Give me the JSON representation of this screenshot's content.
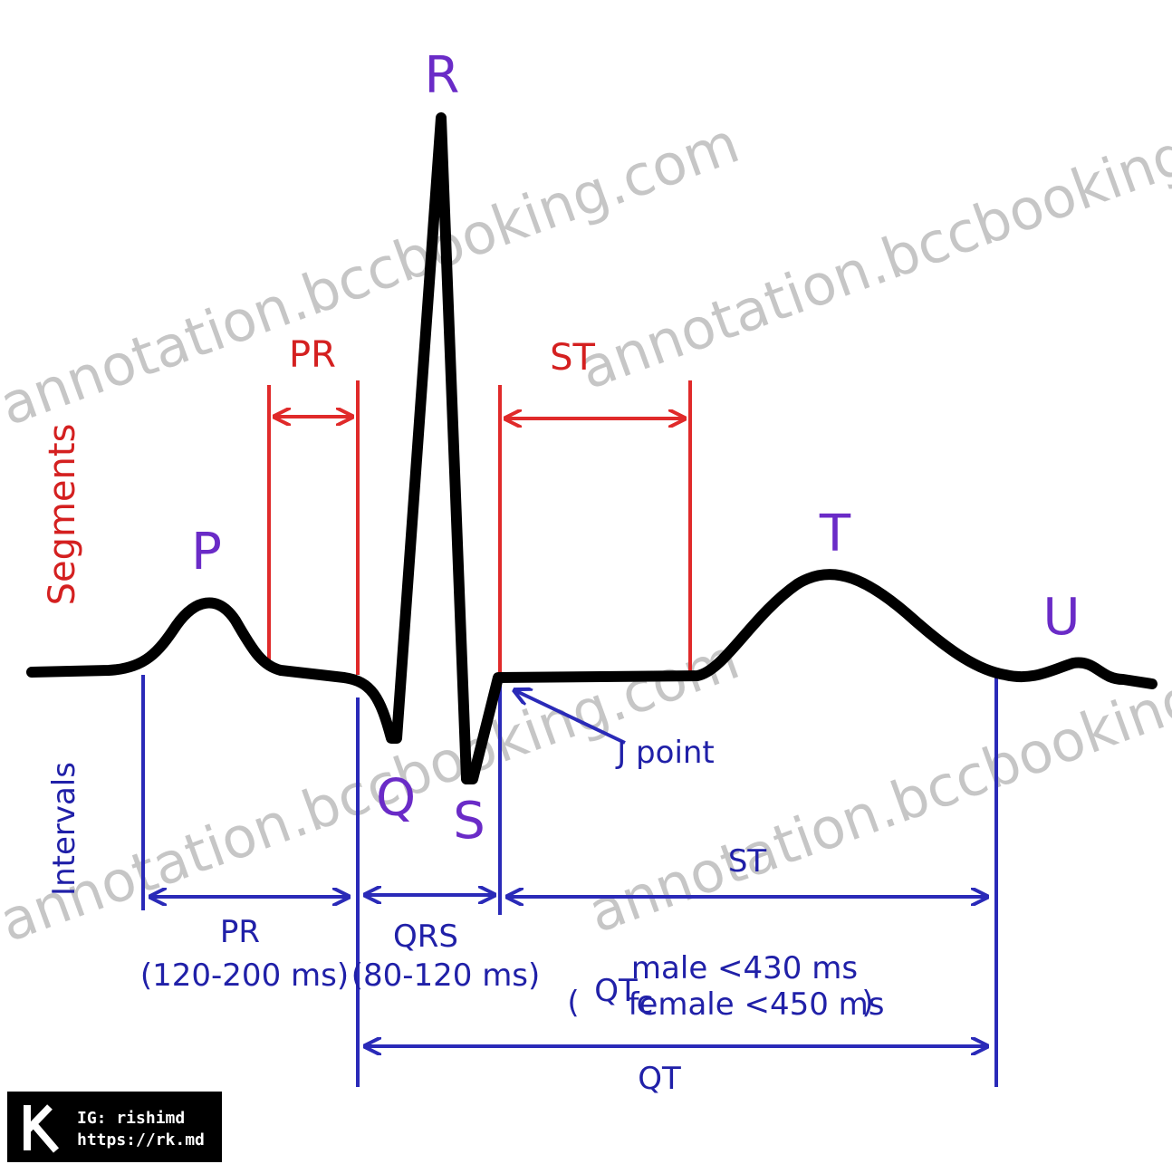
{
  "waves": {
    "p": "P",
    "q": "Q",
    "r": "R",
    "s": "S",
    "t": "T",
    "u": "U"
  },
  "side_labels": {
    "segments": "Segments",
    "intervals": "Intervals"
  },
  "segments": {
    "pr": "PR",
    "st": "ST"
  },
  "j_point": "J point",
  "intervals": {
    "pr": {
      "label": "PR",
      "range": "(120-200 ms)"
    },
    "qrs": {
      "label": "QRS",
      "range": "(80-120 ms)"
    },
    "st": {
      "label": "ST"
    },
    "qtc": {
      "label": "QT",
      "subscript": "c",
      "male": "male <430 ms",
      "female": "female <450 ms"
    },
    "qt": {
      "label": "QT"
    }
  },
  "watermark": "annotation.bccbooking.com",
  "logo": {
    "line1": "IG: rishimd",
    "line2": "https://rk.md"
  }
}
